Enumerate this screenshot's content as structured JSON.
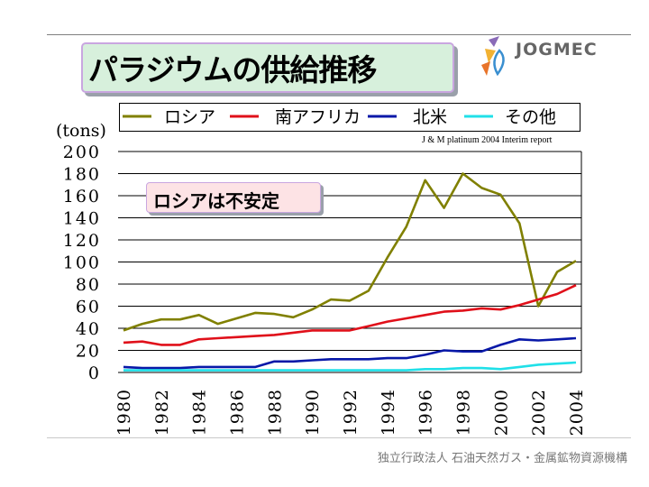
{
  "title": "パラジウムの供給推移",
  "logo_text": "JOGMEC",
  "annotation": "ロシアは不安定",
  "footer": "独立行政法人 石油天然ガス・金属鉱物資源機構",
  "colors": {
    "russia": "#808000",
    "south_africa": "#e0101a",
    "north_america": "#0818a8",
    "other": "#20e0e8"
  },
  "chart_data": {
    "type": "line",
    "title": "パラジウムの供給推移",
    "unit_label": "(tons)",
    "source": "J & M platinum 2004 Interim report",
    "ylim": [
      0,
      200
    ],
    "y_ticks": [
      0,
      20,
      40,
      60,
      80,
      100,
      120,
      140,
      160,
      180,
      200
    ],
    "y_tick_labels": [
      "0",
      "20",
      "40",
      "60",
      "80",
      "100",
      "120",
      "140",
      "160",
      "180",
      "200"
    ],
    "x": [
      1980,
      1981,
      1982,
      1983,
      1984,
      1985,
      1986,
      1987,
      1988,
      1989,
      1990,
      1991,
      1992,
      1993,
      1994,
      1995,
      1996,
      1997,
      1998,
      1999,
      2000,
      2001,
      2002,
      2003,
      2004
    ],
    "x_tick_labels": [
      "1980",
      "1982",
      "1984",
      "1986",
      "1988",
      "1990",
      "1992",
      "1994",
      "1996",
      "1998",
      "2000",
      "2002",
      "2004"
    ],
    "grid": true,
    "series": [
      {
        "name": "ロシア",
        "key": "russia",
        "values": [
          38,
          44,
          48,
          48,
          52,
          44,
          49,
          54,
          53,
          50,
          57,
          66,
          65,
          74,
          104,
          132,
          174,
          149,
          180,
          167,
          161,
          135,
          60,
          91,
          101
        ]
      },
      {
        "name": "南アフリカ",
        "key": "south_africa",
        "values": [
          27,
          28,
          25,
          25,
          30,
          31,
          32,
          33,
          34,
          36,
          38,
          38,
          38,
          42,
          46,
          49,
          52,
          55,
          56,
          58,
          57,
          61,
          66,
          71,
          79
        ]
      },
      {
        "name": "北米",
        "key": "north_america",
        "values": [
          5,
          4,
          4,
          4,
          5,
          5,
          5,
          5,
          10,
          10,
          11,
          12,
          12,
          12,
          13,
          13,
          16,
          20,
          19,
          19,
          25,
          30,
          29,
          30,
          31
        ]
      },
      {
        "name": "その他",
        "key": "other",
        "values": [
          2,
          2,
          2,
          2,
          2,
          2,
          2,
          2,
          2,
          2,
          2,
          2,
          2,
          2,
          2,
          2,
          3,
          3,
          4,
          4,
          3,
          5,
          7,
          8,
          9
        ]
      }
    ]
  }
}
